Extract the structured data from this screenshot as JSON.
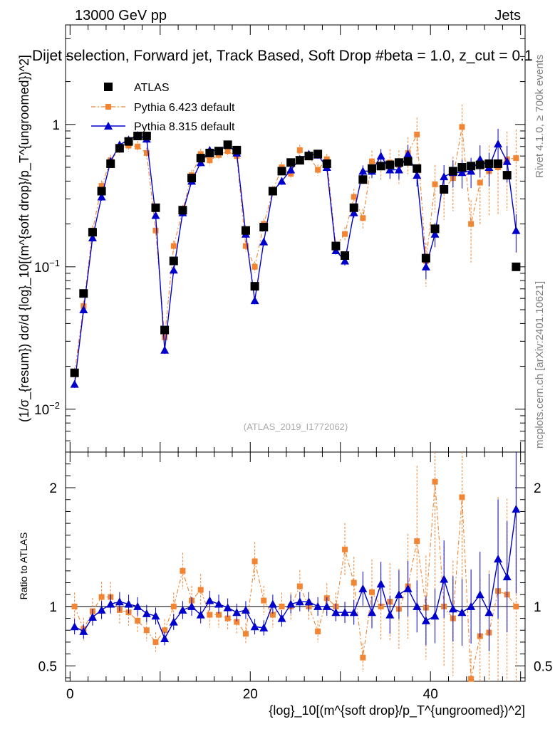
{
  "header": {
    "left": "13000 GeV pp",
    "right": "Jets",
    "title": "Dijet selection, Forward jet, Track Based, Soft Drop #beta = 1.0, z_cut = 0.1"
  },
  "side_labels": {
    "rivet": "Rivet 4.1.0, ≥ 700k events",
    "mcplots": "mcplots.cern.ch [arXiv:2401.10621]"
  },
  "watermark": "(ATLAS_2019_I1772062)",
  "legend": [
    {
      "key": "data",
      "label": "ATLAS"
    },
    {
      "key": "py6",
      "label": "Pythia 6.423 default"
    },
    {
      "key": "py8",
      "label": "Pythia 8.315 default"
    }
  ],
  "colors": {
    "data": "#000000",
    "py6": "#f28533",
    "py8": "#0000cc"
  },
  "chart_data": [
    {
      "type": "scatter",
      "panel": "main",
      "ylabel": "(1/σ_{resum}) dσ/d {log}_10[(m^{soft drop}/p_T^{ungroomed})^2]",
      "yscale": "log",
      "ylim": [
        0.005,
        5
      ],
      "xlim": [
        -0.5,
        50.5
      ],
      "y_tick_labels": [
        "10^-2",
        "10^-1",
        "1"
      ],
      "x": [
        0.5,
        1.5,
        2.5,
        3.5,
        4.5,
        5.5,
        6.5,
        7.5,
        8.5,
        9.5,
        10.5,
        11.5,
        12.5,
        13.5,
        14.5,
        15.5,
        16.5,
        17.5,
        18.5,
        19.5,
        20.5,
        21.5,
        22.5,
        23.5,
        24.5,
        25.5,
        26.5,
        27.5,
        28.5,
        29.5,
        30.5,
        31.5,
        32.5,
        33.5,
        34.5,
        35.5,
        36.5,
        37.5,
        38.5,
        39.5,
        40.5,
        41.5,
        42.5,
        43.5,
        44.5,
        45.5,
        46.5,
        47.5,
        48.5,
        49.5
      ],
      "series": [
        {
          "name": "ATLAS",
          "key": "data",
          "values": [
            0.018,
            0.065,
            0.175,
            0.34,
            0.53,
            0.68,
            0.76,
            0.83,
            0.83,
            0.26,
            0.036,
            0.11,
            0.25,
            0.42,
            0.58,
            0.63,
            0.65,
            0.72,
            0.66,
            0.18,
            0.073,
            0.19,
            0.34,
            0.47,
            0.54,
            0.56,
            0.6,
            0.62,
            0.53,
            0.14,
            0.12,
            0.26,
            0.41,
            0.49,
            0.51,
            0.52,
            0.54,
            0.55,
            0.49,
            0.115,
            0.185,
            0.35,
            0.47,
            0.5,
            0.51,
            0.52,
            0.53,
            0.53,
            0.44,
            0.1
          ]
        },
        {
          "name": "Pythia 6.423 default",
          "key": "py6",
          "values": [
            0.018,
            0.053,
            0.18,
            0.37,
            0.56,
            0.67,
            0.71,
            0.7,
            0.63,
            0.18,
            0.032,
            0.14,
            0.25,
            0.44,
            0.62,
            0.56,
            0.61,
            0.65,
            0.6,
            0.14,
            0.1,
            0.2,
            0.34,
            0.5,
            0.45,
            0.66,
            0.6,
            0.48,
            0.57,
            0.14,
            0.17,
            0.31,
            0.22,
            0.55,
            0.52,
            0.54,
            0.52,
            0.63,
            0.85,
            0.11,
            0.38,
            0.35,
            0.42,
            0.96,
            0.2,
            0.39,
            0.47,
            0.5,
            0.57,
            0.58
          ]
        },
        {
          "name": "Pythia 8.315 default",
          "key": "py8",
          "values": [
            0.015,
            0.05,
            0.16,
            0.31,
            0.55,
            0.72,
            0.78,
            0.84,
            0.79,
            0.23,
            0.026,
            0.095,
            0.24,
            0.4,
            0.54,
            0.66,
            0.65,
            0.72,
            0.63,
            0.17,
            0.058,
            0.15,
            0.34,
            0.4,
            0.48,
            0.57,
            0.62,
            0.61,
            0.5,
            0.13,
            0.11,
            0.24,
            0.47,
            0.47,
            0.6,
            0.48,
            0.48,
            0.62,
            0.44,
            0.1,
            0.17,
            0.43,
            0.46,
            0.46,
            0.47,
            0.57,
            0.5,
            0.73,
            0.55,
            0.18
          ]
        }
      ]
    },
    {
      "type": "scatter",
      "panel": "ratio",
      "ylabel": "Ratio to ATLAS",
      "xlabel": "{log}_10[(m^{soft drop}/p_T^{ungroomed})^2]",
      "ylim": [
        0.37,
        2.3
      ],
      "y_tick_labels": [
        "0.5",
        "1",
        "2"
      ],
      "x_tick_labels": [
        "0",
        "20",
        "40"
      ],
      "x": [
        0.5,
        1.5,
        2.5,
        3.5,
        4.5,
        5.5,
        6.5,
        7.5,
        8.5,
        9.5,
        10.5,
        11.5,
        12.5,
        13.5,
        14.5,
        15.5,
        16.5,
        17.5,
        18.5,
        19.5,
        20.5,
        21.5,
        22.5,
        23.5,
        24.5,
        25.5,
        26.5,
        27.5,
        28.5,
        29.5,
        30.5,
        31.5,
        32.5,
        33.5,
        34.5,
        35.5,
        36.5,
        37.5,
        38.5,
        39.5,
        40.5,
        41.5,
        42.5,
        43.5,
        44.5,
        45.5,
        46.5,
        47.5,
        48.5,
        49.5
      ],
      "series": [
        {
          "name": "Pythia 6.423 default",
          "key": "py6",
          "values": [
            1.0,
            0.81,
            0.96,
            1.08,
            1.08,
            0.97,
            0.95,
            0.88,
            0.8,
            0.7,
            0.8,
            1.0,
            1.3,
            1.05,
            1.14,
            0.93,
            0.93,
            0.9,
            0.87,
            0.77,
            1.38,
            1.05,
            0.93,
            1.0,
            1.0,
            1.17,
            1.0,
            0.79,
            1.07,
            1.0,
            1.48,
            1.2,
            0.57,
            1.12,
            1.0,
            1.04,
            0.98,
            1.17,
            1.55,
            0.99,
            2.05,
            1.0,
            0.9,
            1.92,
            0.39,
            0.75,
            0.78,
            1.13,
            1.1,
            1.0
          ]
        },
        {
          "name": "Pythia 8.315 default",
          "key": "py8",
          "values": [
            0.83,
            0.79,
            0.91,
            0.97,
            1.02,
            1.04,
            1.02,
            1.0,
            0.94,
            0.92,
            0.73,
            0.87,
            0.97,
            1.0,
            0.93,
            1.05,
            1.02,
            0.99,
            0.95,
            0.97,
            0.83,
            0.82,
            1.02,
            0.9,
            1.02,
            1.04,
            1.04,
            1.0,
            1.0,
            0.95,
            0.95,
            0.95,
            1.15,
            0.95,
            1.19,
            0.93,
            1.1,
            1.15,
            1.0,
            0.88,
            0.92,
            1.23,
            0.98,
            0.95,
            1.0,
            1.1,
            0.95,
            1.4,
            1.25,
            1.82
          ]
        }
      ]
    }
  ]
}
